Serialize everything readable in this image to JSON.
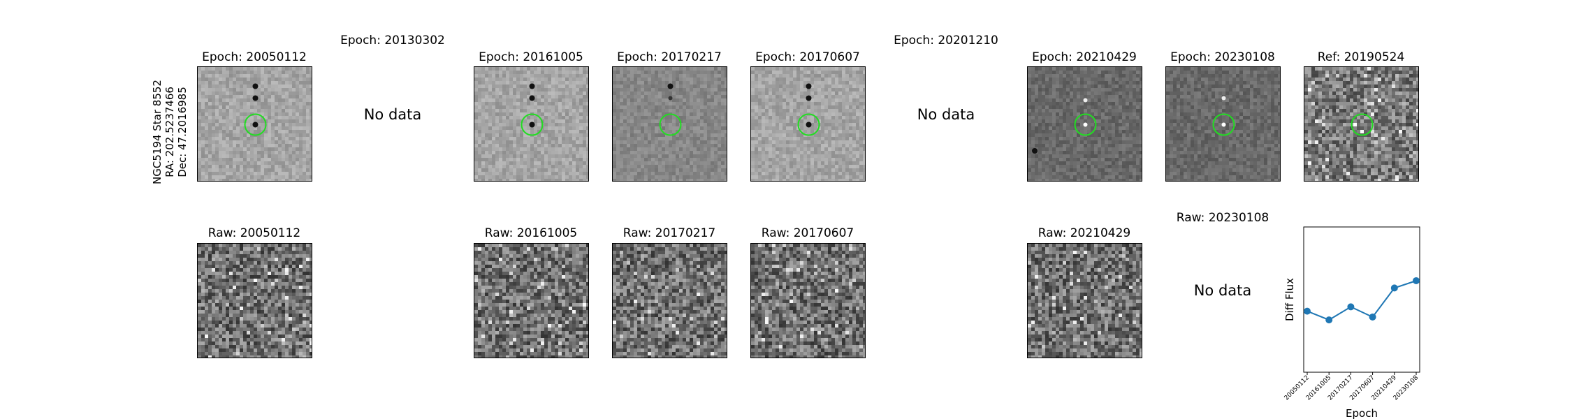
{
  "star_label": {
    "line1": "NGC5194 Star 8552",
    "line2": "RA: 202.5237466",
    "line3": "Dec: 47.2016985"
  },
  "top_row": [
    {
      "title": "Epoch: 20050112",
      "has_data": true,
      "image_tone": "light",
      "dark_spots": "three-column"
    },
    {
      "title": "Epoch: 20130302",
      "has_data": false
    },
    {
      "title": "Epoch: 20161005",
      "has_data": true,
      "image_tone": "light",
      "dark_spots": "three-column"
    },
    {
      "title": "Epoch: 20170217",
      "has_data": true,
      "image_tone": "mid",
      "dark_spots": "two-upper"
    },
    {
      "title": "Epoch: 20170607",
      "has_data": true,
      "image_tone": "light",
      "dark_spots": "three-column"
    },
    {
      "title": "Epoch: 20201210",
      "has_data": false
    },
    {
      "title": "Epoch: 20210429",
      "has_data": true,
      "image_tone": "dark",
      "dark_spots": "corner"
    },
    {
      "title": "Epoch: 20230108",
      "has_data": true,
      "image_tone": "dark",
      "dark_spots": "none"
    },
    {
      "title": "Ref: 20190524",
      "has_data": true,
      "image_tone": "speckle",
      "dark_spots": "none"
    }
  ],
  "bottom_row": [
    {
      "title": "Raw: 20050112",
      "has_data": true
    },
    {
      "title": "Raw: 20161005",
      "has_data": true
    },
    {
      "title": "Raw: 20170217",
      "has_data": true
    },
    {
      "title": "Raw: 20170607",
      "has_data": true
    },
    {
      "title": "Raw: 20210429",
      "has_data": true
    },
    {
      "title": "Raw: 20230108",
      "has_data": false
    }
  ],
  "no_data_label": "No data",
  "marker_color": "#22dd22",
  "chart_data": {
    "type": "line",
    "x": [
      "20050112",
      "20161005",
      "20170217",
      "20170607",
      "20210429",
      "20230108"
    ],
    "series": [
      {
        "values": [
          0.42,
          0.36,
          0.45,
          0.38,
          0.58,
          0.63
        ],
        "color": "#1f77b4"
      }
    ],
    "xlabel": "Epoch",
    "ylabel": "Diff Flux",
    "ylim": [
      0,
      1
    ],
    "grid": false
  }
}
